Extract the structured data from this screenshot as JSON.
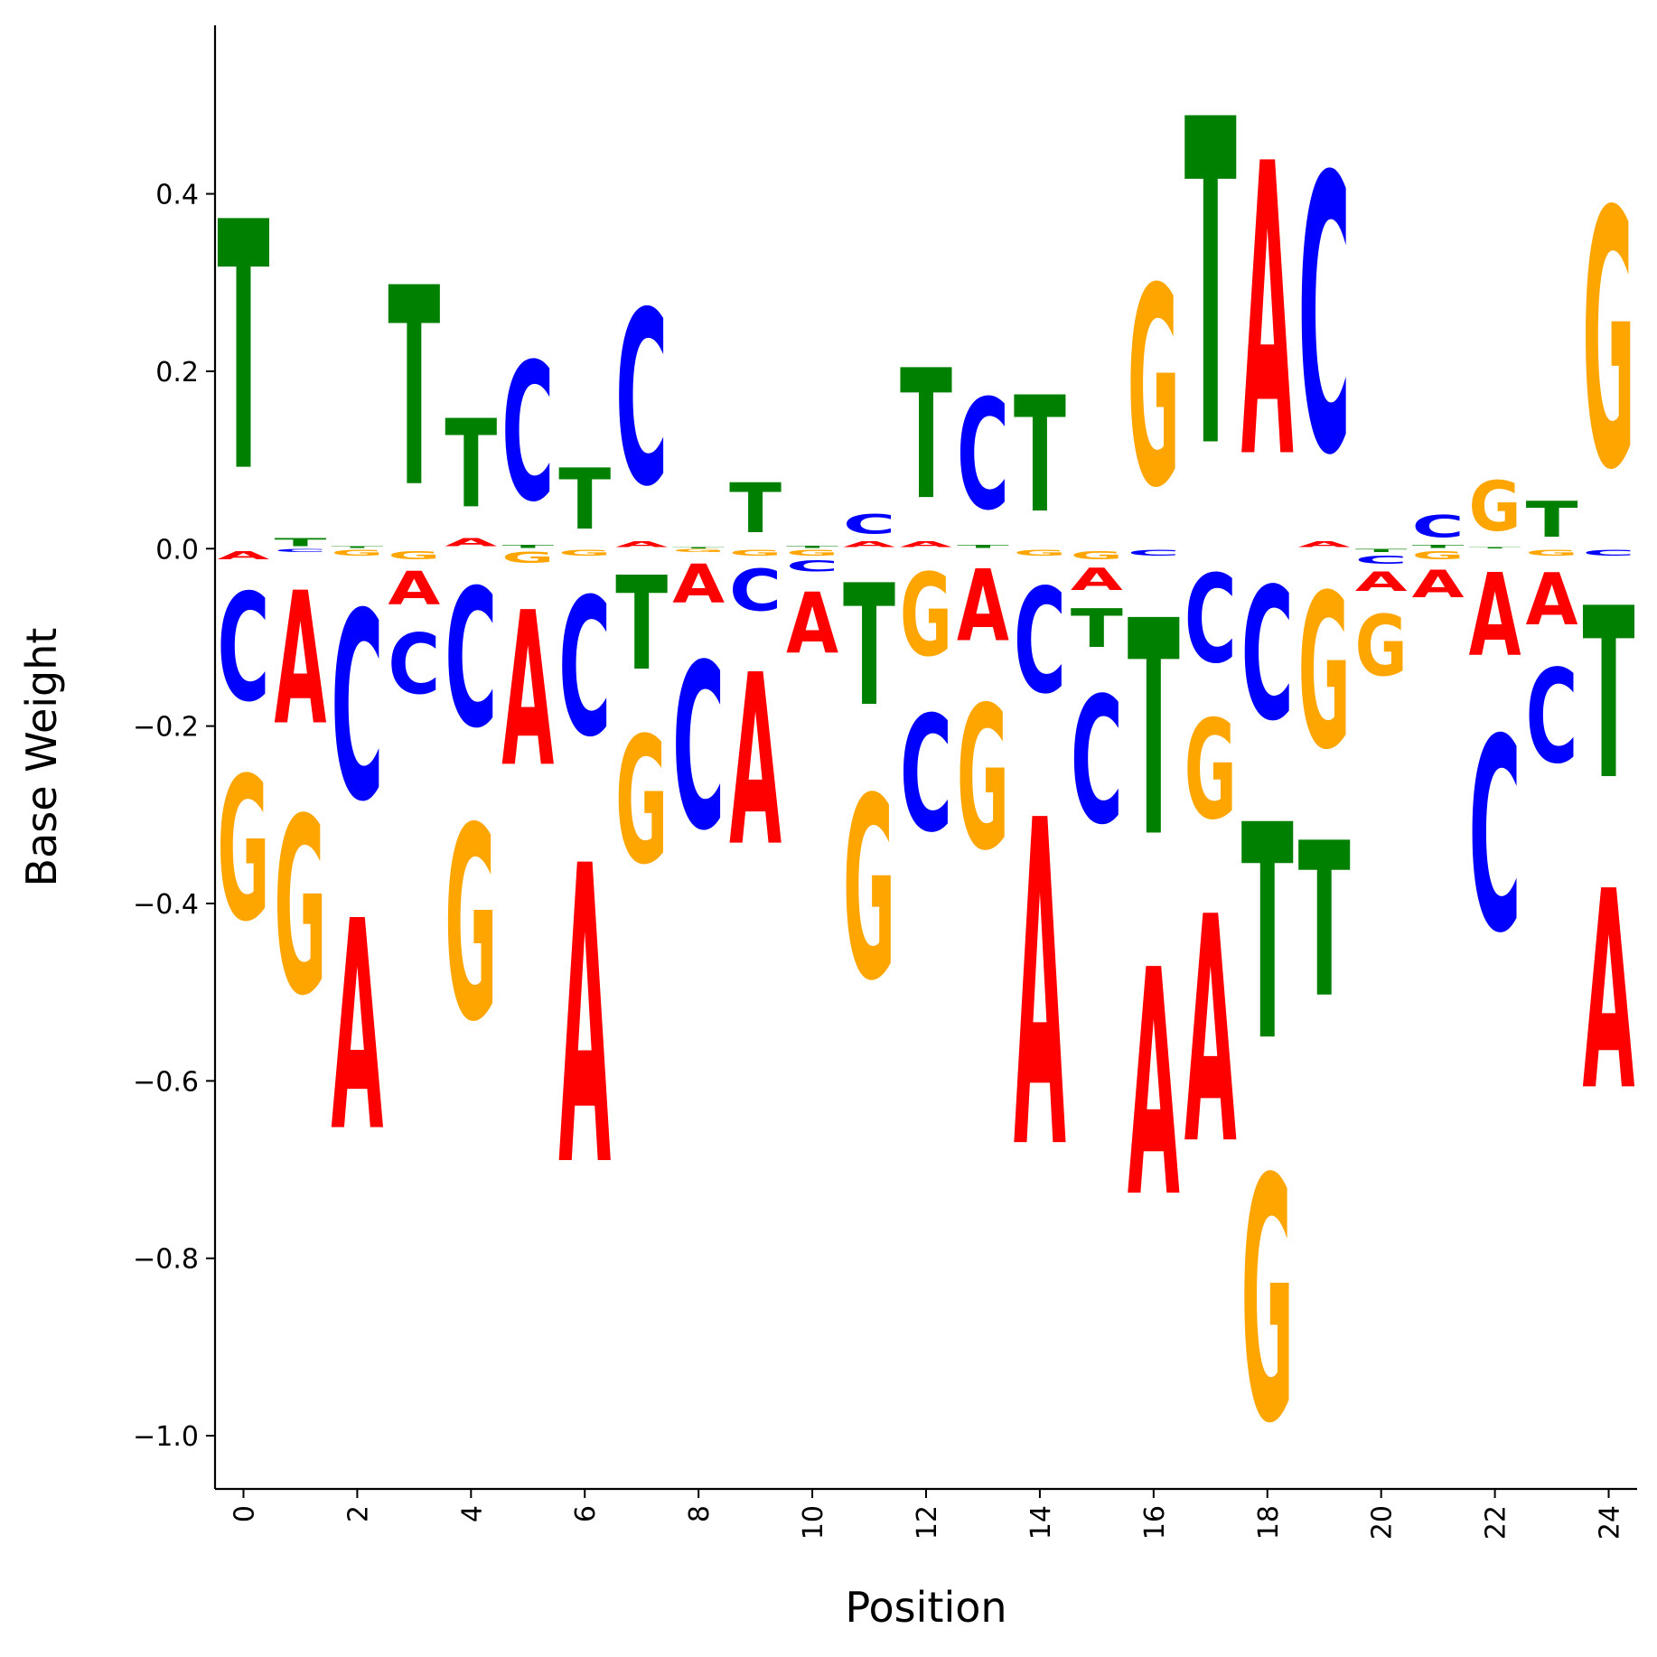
{
  "chart_data": {
    "type": "sequence-logo",
    "title": "",
    "xlabel": "Position",
    "ylabel": "Base Weight",
    "xlim": [
      -0.5,
      24.5
    ],
    "ylim": [
      -1.06,
      0.59
    ],
    "xticks": [
      0,
      2,
      4,
      6,
      8,
      10,
      12,
      14,
      16,
      18,
      20,
      22,
      24
    ],
    "xtick_labels": [
      "0",
      "2",
      "4",
      "6",
      "8",
      "10",
      "12",
      "14",
      "16",
      "18",
      "20",
      "22",
      "24"
    ],
    "yticks": [
      0.4,
      0.2,
      0.0,
      -0.2,
      -0.4,
      -0.6,
      -0.8,
      -1.0
    ],
    "ytick_labels": [
      "0.4",
      "0.2",
      "0.0",
      "−0.2",
      "−0.4",
      "−0.6",
      "−0.8",
      "−1.0"
    ],
    "colors": {
      "A": "#ff0000",
      "C": "#0000ff",
      "G": "#ffa500",
      "T": "#008000"
    },
    "positions": [
      {
        "pos": 0,
        "weights": {
          "A": -0.015,
          "C": -0.195,
          "G": -0.26,
          "T": 0.45
        }
      },
      {
        "pos": 1,
        "weights": {
          "A": -0.24,
          "C": -0.005,
          "G": -0.32,
          "T": 0.015
        }
      },
      {
        "pos": 2,
        "weights": {
          "A": -0.38,
          "C": -0.34,
          "G": -0.01,
          "T": 0.003
        }
      },
      {
        "pos": 3,
        "weights": {
          "A": -0.06,
          "C": -0.11,
          "G": -0.015,
          "T": 0.36
        }
      },
      {
        "pos": 4,
        "weights": {
          "A": 0.015,
          "C": -0.25,
          "G": -0.35,
          "T": 0.16
        }
      },
      {
        "pos": 5,
        "weights": {
          "A": -0.28,
          "C": 0.25,
          "G": -0.02,
          "T": 0.005
        }
      },
      {
        "pos": 6,
        "weights": {
          "A": -0.54,
          "C": -0.25,
          "G": -0.01,
          "T": 0.11
        }
      },
      {
        "pos": 7,
        "weights": {
          "A": 0.01,
          "C": 0.315,
          "G": -0.23,
          "T": -0.17
        }
      },
      {
        "pos": 8,
        "weights": {
          "A": -0.07,
          "C": -0.3,
          "G": -0.005,
          "T": 0.002
        }
      },
      {
        "pos": 9,
        "weights": {
          "A": -0.31,
          "C": -0.075,
          "G": -0.01,
          "T": 0.09
        }
      },
      {
        "pos": 10,
        "weights": {
          "A": -0.11,
          "C": -0.02,
          "G": -0.01,
          "T": 0.004
        }
      },
      {
        "pos": 11,
        "weights": {
          "A": 0.01,
          "C": 0.035,
          "G": -0.33,
          "T": -0.22
        }
      },
      {
        "pos": 12,
        "weights": {
          "A": 0.01,
          "C": -0.21,
          "G": -0.15,
          "T": 0.235
        }
      },
      {
        "pos": 13,
        "weights": {
          "A": -0.13,
          "C": 0.2,
          "G": -0.26,
          "T": 0.005
        }
      },
      {
        "pos": 14,
        "weights": {
          "A": -0.59,
          "C": -0.19,
          "G": -0.01,
          "T": 0.21
        }
      },
      {
        "pos": 15,
        "weights": {
          "A": -0.04,
          "C": -0.23,
          "G": -0.015,
          "T": -0.07
        }
      },
      {
        "pos": 16,
        "weights": {
          "A": -0.41,
          "C": -0.01,
          "G": 0.36,
          "T": -0.39
        }
      },
      {
        "pos": 17,
        "weights": {
          "A": -0.41,
          "C": -0.16,
          "G": -0.18,
          "T": 0.59
        }
      },
      {
        "pos": 18,
        "weights": {
          "A": 0.53,
          "C": -0.24,
          "G": -0.44,
          "T": -0.39
        }
      },
      {
        "pos": 19,
        "weights": {
          "A": 0.01,
          "C": 0.5,
          "G": -0.28,
          "T": -0.28
        }
      },
      {
        "pos": 20,
        "weights": {
          "A": -0.035,
          "C": -0.015,
          "G": -0.11,
          "T": -0.005
        }
      },
      {
        "pos": 21,
        "weights": {
          "A": -0.05,
          "C": 0.04,
          "G": -0.015,
          "T": 0.005
        }
      },
      {
        "pos": 22,
        "weights": {
          "A": -0.15,
          "C": -0.35,
          "G": 0.09,
          "T": 0.002
        }
      },
      {
        "pos": 23,
        "weights": {
          "A": -0.095,
          "C": -0.17,
          "G": -0.01,
          "T": 0.065
        }
      },
      {
        "pos": 24,
        "weights": {
          "A": -0.36,
          "C": -0.01,
          "G": 0.465,
          "T": -0.31
        }
      }
    ]
  }
}
